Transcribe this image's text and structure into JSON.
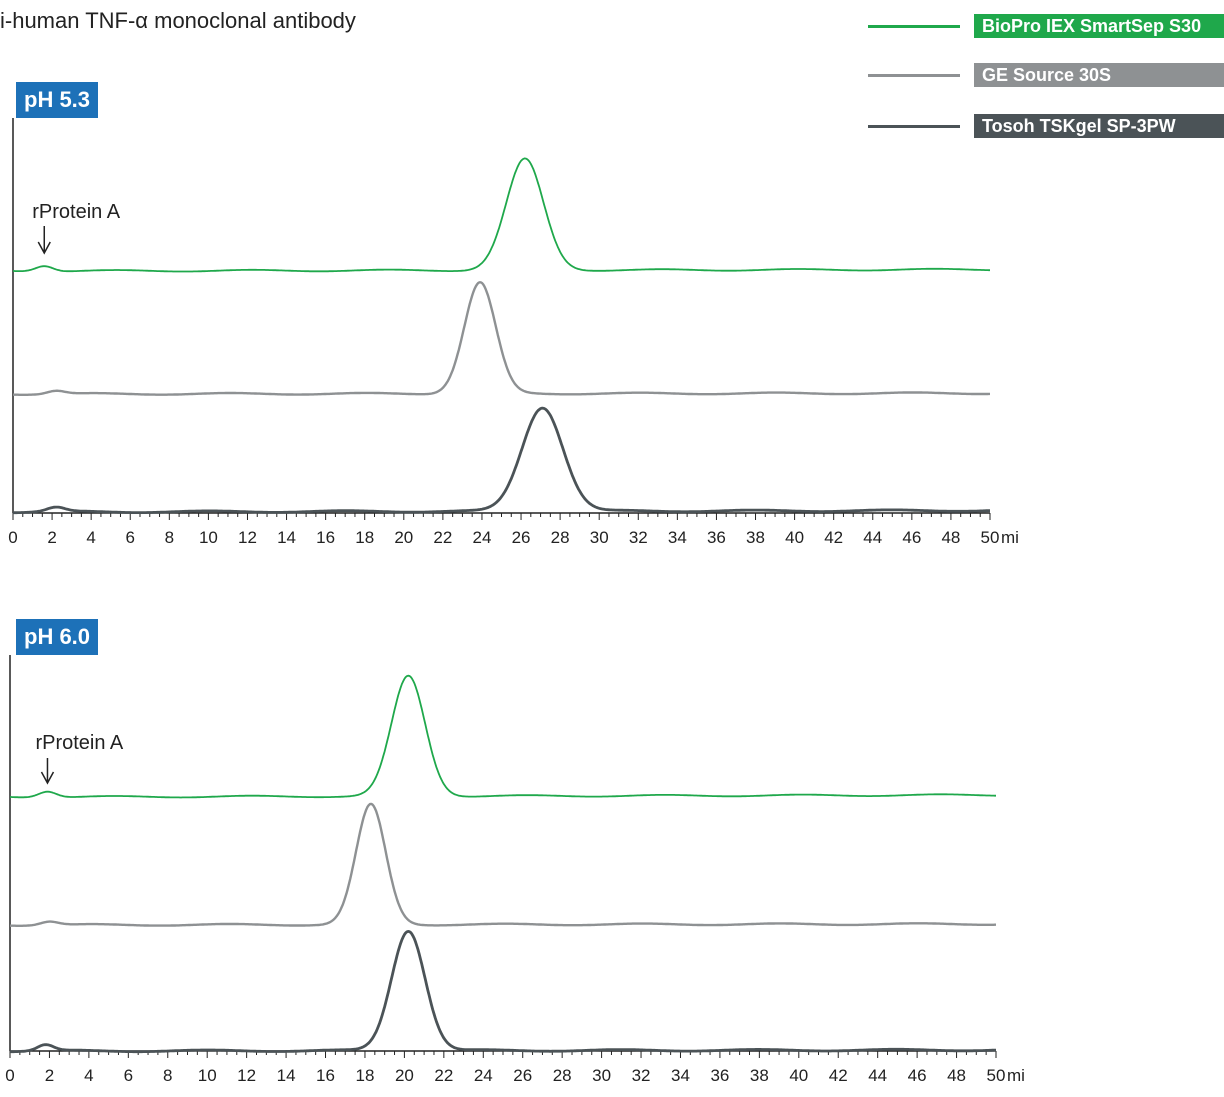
{
  "title": "i-human TNF-α monoclonal antibody",
  "legend": [
    {
      "label": "BioPro IEX SmartSep S30",
      "color": "#1fa84b"
    },
    {
      "label": "GE Source 30S",
      "color": "#8e9193"
    },
    {
      "label": "Tosoh TSKgel SP-3PW",
      "color": "#4b5357"
    }
  ],
  "chart_data": [
    {
      "type": "line",
      "title": "pH 5.3",
      "xlabel": "mi",
      "xlim": [
        0,
        50
      ],
      "x_ticks": [
        0,
        2,
        4,
        6,
        8,
        10,
        12,
        14,
        16,
        18,
        20,
        22,
        24,
        26,
        28,
        30,
        32,
        34,
        36,
        38,
        40,
        42,
        44,
        46,
        48,
        50
      ],
      "annotation": {
        "text": "rProtein A",
        "x": 1.6
      },
      "series": [
        {
          "name": "BioPro IEX SmartSep S30",
          "peaks": [
            {
              "x": 26.2,
              "height": 1.0,
              "width": 0.95
            },
            {
              "x": 1.6,
              "height": 0.05,
              "width": 0.45
            }
          ]
        },
        {
          "name": "GE Source 30S",
          "peaks": [
            {
              "x": 23.9,
              "height": 1.0,
              "width": 0.8
            },
            {
              "x": 2.2,
              "height": 0.03,
              "width": 0.45
            }
          ]
        },
        {
          "name": "Tosoh TSKgel SP-3PW",
          "peaks": [
            {
              "x": 27.1,
              "height": 0.97,
              "width": 1.05
            },
            {
              "x": 2.2,
              "height": 0.04,
              "width": 0.45
            }
          ]
        }
      ]
    },
    {
      "type": "line",
      "title": "pH 6.0",
      "xlabel": "mi",
      "xlim": [
        0,
        50
      ],
      "x_ticks": [
        0,
        2,
        4,
        6,
        8,
        10,
        12,
        14,
        16,
        18,
        20,
        22,
        24,
        26,
        28,
        30,
        32,
        34,
        36,
        38,
        40,
        42,
        44,
        46,
        48,
        50
      ],
      "annotation": {
        "text": "rProtein A",
        "x": 1.9
      },
      "series": [
        {
          "name": "BioPro IEX SmartSep S30",
          "peaks": [
            {
              "x": 20.2,
              "height": 1.0,
              "width": 0.85
            },
            {
              "x": 1.9,
              "height": 0.05,
              "width": 0.45
            }
          ]
        },
        {
          "name": "GE Source 30S",
          "peaks": [
            {
              "x": 18.3,
              "height": 1.0,
              "width": 0.75
            },
            {
              "x": 2.0,
              "height": 0.03,
              "width": 0.45
            }
          ]
        },
        {
          "name": "Tosoh TSKgel SP-3PW",
          "peaks": [
            {
              "x": 20.2,
              "height": 1.0,
              "width": 0.85
            },
            {
              "x": 1.8,
              "height": 0.05,
              "width": 0.4
            }
          ]
        }
      ]
    }
  ]
}
